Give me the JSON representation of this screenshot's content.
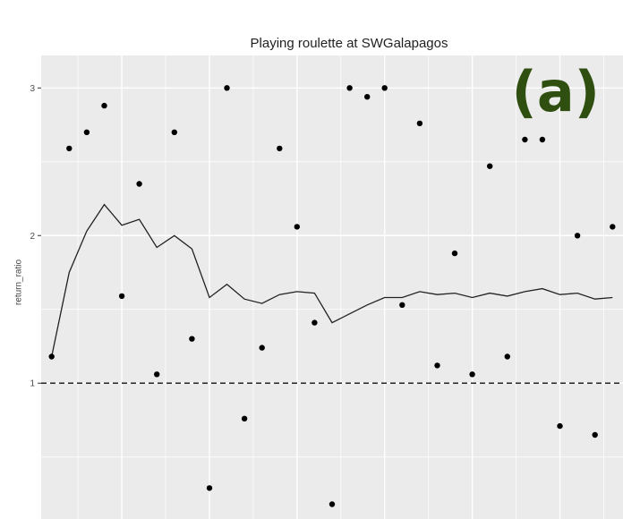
{
  "chart_data": {
    "type": "scatter+line",
    "title": "Playing roulette at SWGalapagos",
    "xlabel": "",
    "ylabel": "return_ratio",
    "panel_label": "(a)",
    "panel_label_color": "#2f4f10",
    "y_ticks": [
      1,
      2,
      3
    ],
    "ylim": [
      0.08,
      3.22
    ],
    "xlim": [
      0.4,
      33.6
    ],
    "grid": true,
    "background": "#ebebeb",
    "reference_line": {
      "y": 1,
      "style": "dashed"
    },
    "points": {
      "x": [
        1,
        2,
        3,
        4,
        5,
        6,
        7,
        8,
        9,
        10,
        11,
        12,
        13,
        14,
        15,
        16,
        17,
        18,
        19,
        20,
        21,
        22,
        23,
        24,
        25,
        26,
        27,
        28,
        29,
        30,
        31,
        32,
        33
      ],
      "y": [
        1.18,
        2.59,
        2.7,
        2.88,
        1.59,
        2.35,
        1.06,
        2.7,
        1.3,
        0.29,
        3.0,
        0.76,
        1.24,
        2.59,
        2.06,
        1.41,
        0.18,
        3.0,
        2.94,
        3.0,
        1.53,
        2.76,
        1.12,
        1.88,
        1.06,
        2.47,
        1.18,
        2.65,
        2.65,
        0.71,
        2.0,
        0.65,
        2.06
      ]
    },
    "running_mean": {
      "x": [
        1,
        2,
        3,
        4,
        5,
        6,
        7,
        8,
        9,
        10,
        11,
        12,
        13,
        14,
        15,
        16,
        17,
        18,
        19,
        20,
        21,
        22,
        23,
        24,
        25,
        26,
        27,
        28,
        29,
        30,
        31,
        32,
        33
      ],
      "y": [
        1.18,
        1.75,
        2.03,
        2.21,
        2.07,
        2.11,
        1.92,
        2.0,
        1.91,
        1.58,
        1.67,
        1.57,
        1.54,
        1.6,
        1.62,
        1.61,
        1.41,
        1.47,
        1.53,
        1.58,
        1.58,
        1.62,
        1.6,
        1.61,
        1.58,
        1.61,
        1.59,
        1.62,
        1.64,
        1.6,
        1.61,
        1.57,
        1.58
      ]
    }
  }
}
